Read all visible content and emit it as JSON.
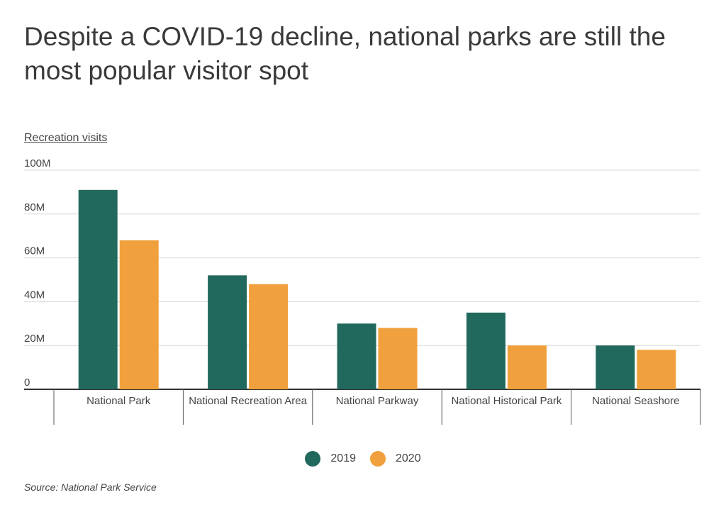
{
  "chart_data": {
    "type": "bar",
    "title": "Despite a COVID-19 decline, national parks are still the most popular visitor spot",
    "ylabel": "Recreation visits",
    "xlabel": "",
    "categories": [
      "National Park",
      "National Recreation Area",
      "National Parkway",
      "National Historical Park",
      "National Seashore"
    ],
    "series": [
      {
        "name": "2019",
        "color": "#22695d",
        "values": [
          91,
          52,
          30,
          35,
          20
        ]
      },
      {
        "name": "2020",
        "color": "#f0a03c",
        "values": [
          68,
          48,
          28,
          20,
          18
        ]
      }
    ],
    "ylim": [
      0,
      100
    ],
    "yticks": [
      {
        "value": 0,
        "label": "0"
      },
      {
        "value": 20,
        "label": "20M"
      },
      {
        "value": 40,
        "label": "40M"
      },
      {
        "value": 60,
        "label": "60M"
      },
      {
        "value": 80,
        "label": "80M"
      },
      {
        "value": 100,
        "label": "100M"
      }
    ],
    "grid": true,
    "legend": "bottom-center",
    "source": "Source:  National Park Service"
  }
}
